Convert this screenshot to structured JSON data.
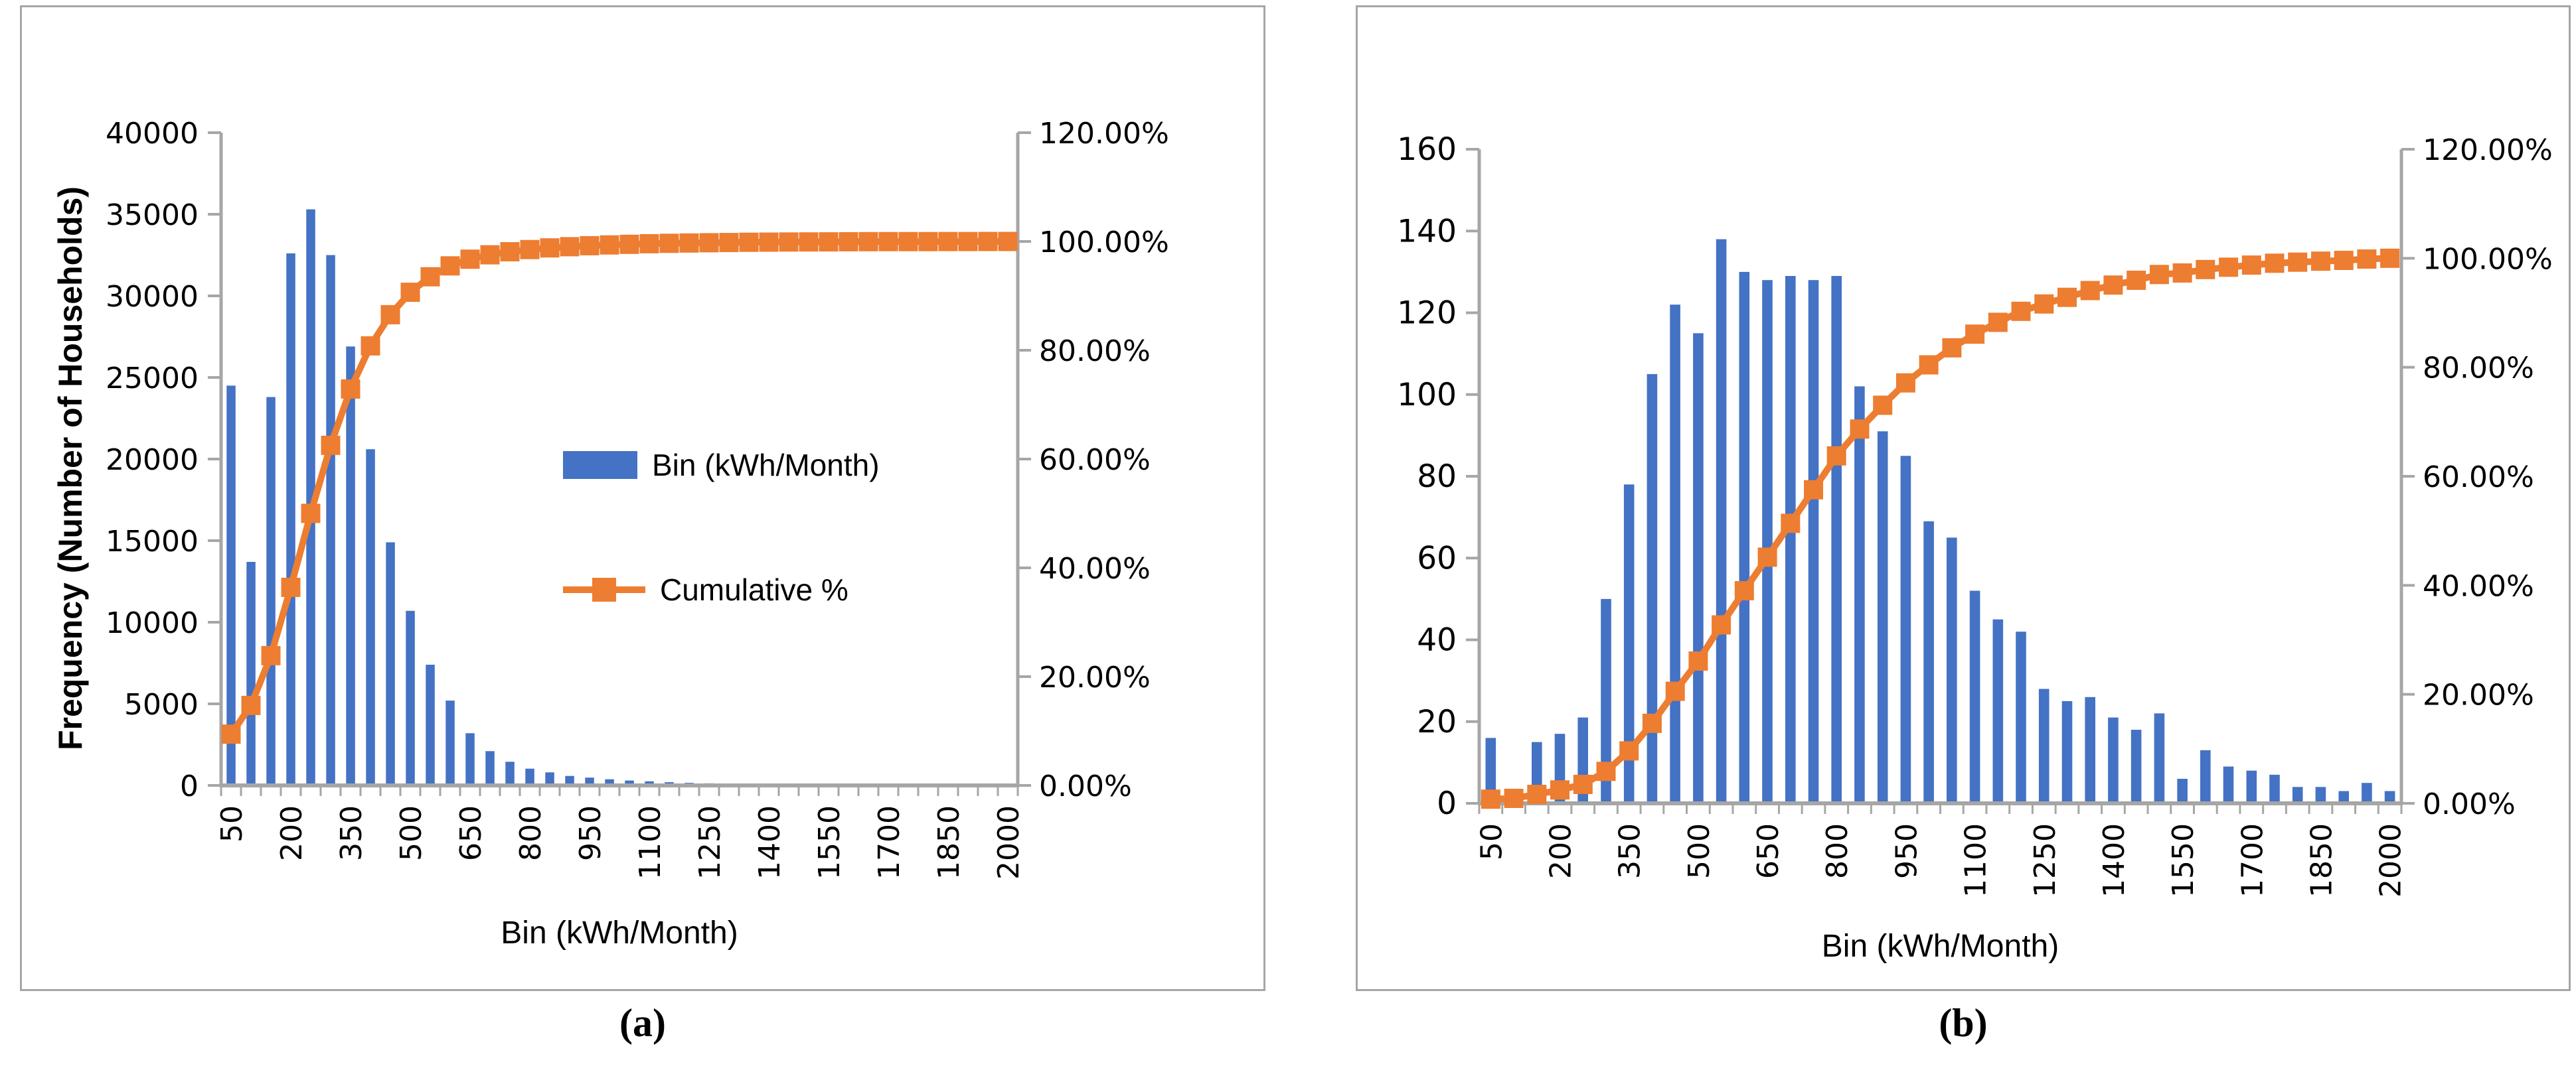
{
  "colors": {
    "bar_blue": "#4472C4",
    "line_orange": "#ED7D31",
    "axis_gray": "#A6A6A6",
    "panel_border": "#A6A6A6",
    "background": "#FFFFFF"
  },
  "captions": {
    "a": "(a)",
    "b": "(b)"
  },
  "legend": {
    "bars_label": "Bin (kWh/Month)",
    "cumulative_label": "Cumulative %"
  },
  "chart_data": [
    {
      "id": "a",
      "type": "bar",
      "subtype": "pareto-histogram-with-cumulative-line",
      "title": "",
      "xlabel": "Bin (kWh/Month)",
      "ylabel": "Frequency (Number of Households)",
      "ylabel_right": "",
      "categories": [
        50,
        100,
        150,
        200,
        250,
        300,
        350,
        400,
        450,
        500,
        550,
        600,
        650,
        700,
        750,
        800,
        850,
        900,
        950,
        1000,
        1050,
        1100,
        1150,
        1200,
        1250,
        1300,
        1350,
        1400,
        1450,
        1500,
        1550,
        1600,
        1650,
        1700,
        1750,
        1800,
        1850,
        1900,
        1950,
        2000
      ],
      "x_label_every": 3,
      "series": [
        {
          "name": "Bin (kWh/Month)",
          "type": "bar",
          "axis": "left",
          "color": "#4472C4",
          "values": [
            24500,
            13700,
            23800,
            32600,
            35300,
            32500,
            26900,
            20600,
            14900,
            10700,
            7400,
            5200,
            3200,
            2100,
            1450,
            1030,
            800,
            580,
            480,
            380,
            300,
            250,
            200,
            160,
            130,
            110,
            90,
            75,
            60,
            50,
            40,
            35,
            30,
            25,
            20,
            18,
            15,
            12,
            10,
            8
          ]
        },
        {
          "name": "Cumulative %",
          "type": "line-square-marker",
          "axis": "right",
          "color": "#ED7D31",
          "values_pct": [
            9.43,
            14.71,
            23.87,
            36.42,
            50.01,
            62.52,
            72.88,
            80.81,
            86.54,
            90.66,
            93.51,
            95.51,
            96.74,
            97.55,
            98.11,
            98.51,
            98.82,
            99.04,
            99.22,
            99.37,
            99.48,
            99.58,
            99.66,
            99.72,
            99.77,
            99.81,
            99.85,
            99.88,
            99.9,
            99.92,
            99.93,
            99.95,
            99.96,
            99.97,
            99.98,
            99.98,
            99.99,
            99.99,
            100.0,
            100.0
          ]
        }
      ],
      "left_axis": {
        "min": 0,
        "max": 40000,
        "step": 5000,
        "tick_labels": [
          "0",
          "5000",
          "10000",
          "15000",
          "20000",
          "25000",
          "30000",
          "35000",
          "40000"
        ]
      },
      "right_axis": {
        "min_pct": 0,
        "max_pct": 120,
        "step_pct": 20,
        "tick_labels": [
          "0.00%",
          "20.00%",
          "40.00%",
          "60.00%",
          "80.00%",
          "100.00%",
          "120.00%"
        ]
      },
      "legend_visible": true,
      "grid": "off",
      "caption": "(a)"
    },
    {
      "id": "b",
      "type": "bar",
      "subtype": "pareto-histogram-with-cumulative-line",
      "title": "",
      "xlabel": "Bin (kWh/Month)",
      "ylabel": "",
      "ylabel_right": "",
      "categories": [
        50,
        100,
        150,
        200,
        250,
        300,
        350,
        400,
        450,
        500,
        550,
        600,
        650,
        700,
        750,
        800,
        850,
        900,
        950,
        1000,
        1050,
        1100,
        1150,
        1200,
        1250,
        1300,
        1350,
        1400,
        1450,
        1500,
        1550,
        1600,
        1650,
        1700,
        1750,
        1800,
        1850,
        1900,
        1950,
        2000
      ],
      "x_label_every": 3,
      "series": [
        {
          "name": "Bin (kWh/Month)",
          "type": "bar",
          "axis": "left",
          "color": "#4472C4",
          "values": [
            16,
            3,
            15,
            17,
            21,
            50,
            78,
            105,
            122,
            115,
            138,
            130,
            128,
            129,
            128,
            129,
            102,
            91,
            85,
            69,
            65,
            52,
            45,
            42,
            28,
            25,
            26,
            21,
            18,
            22,
            6,
            13,
            9,
            8,
            7,
            4,
            4,
            3,
            5,
            3
          ]
        },
        {
          "name": "Cumulative %",
          "type": "line-square-marker",
          "axis": "right",
          "color": "#ED7D31",
          "values_pct": [
            0.77,
            0.91,
            1.64,
            2.46,
            3.47,
            5.87,
            9.63,
            14.68,
            20.56,
            26.1,
            32.74,
            39.0,
            45.16,
            51.37,
            57.53,
            63.75,
            68.66,
            73.04,
            77.13,
            80.45,
            83.58,
            86.08,
            88.25,
            90.27,
            91.62,
            92.83,
            94.08,
            95.09,
            95.96,
            97.02,
            97.3,
            97.93,
            98.36,
            98.75,
            99.09,
            99.28,
            99.47,
            99.61,
            99.86,
            100.0
          ]
        }
      ],
      "left_axis": {
        "min": 0,
        "max": 160,
        "step": 20,
        "tick_labels": [
          "0",
          "20",
          "40",
          "60",
          "80",
          "100",
          "120",
          "140",
          "160"
        ]
      },
      "right_axis": {
        "min_pct": 0,
        "max_pct": 120,
        "step_pct": 20,
        "tick_labels": [
          "0.00%",
          "20.00%",
          "40.00%",
          "60.00%",
          "80.00%",
          "100.00%",
          "120.00%"
        ]
      },
      "legend_visible": false,
      "grid": "off",
      "caption": "(b)"
    }
  ]
}
